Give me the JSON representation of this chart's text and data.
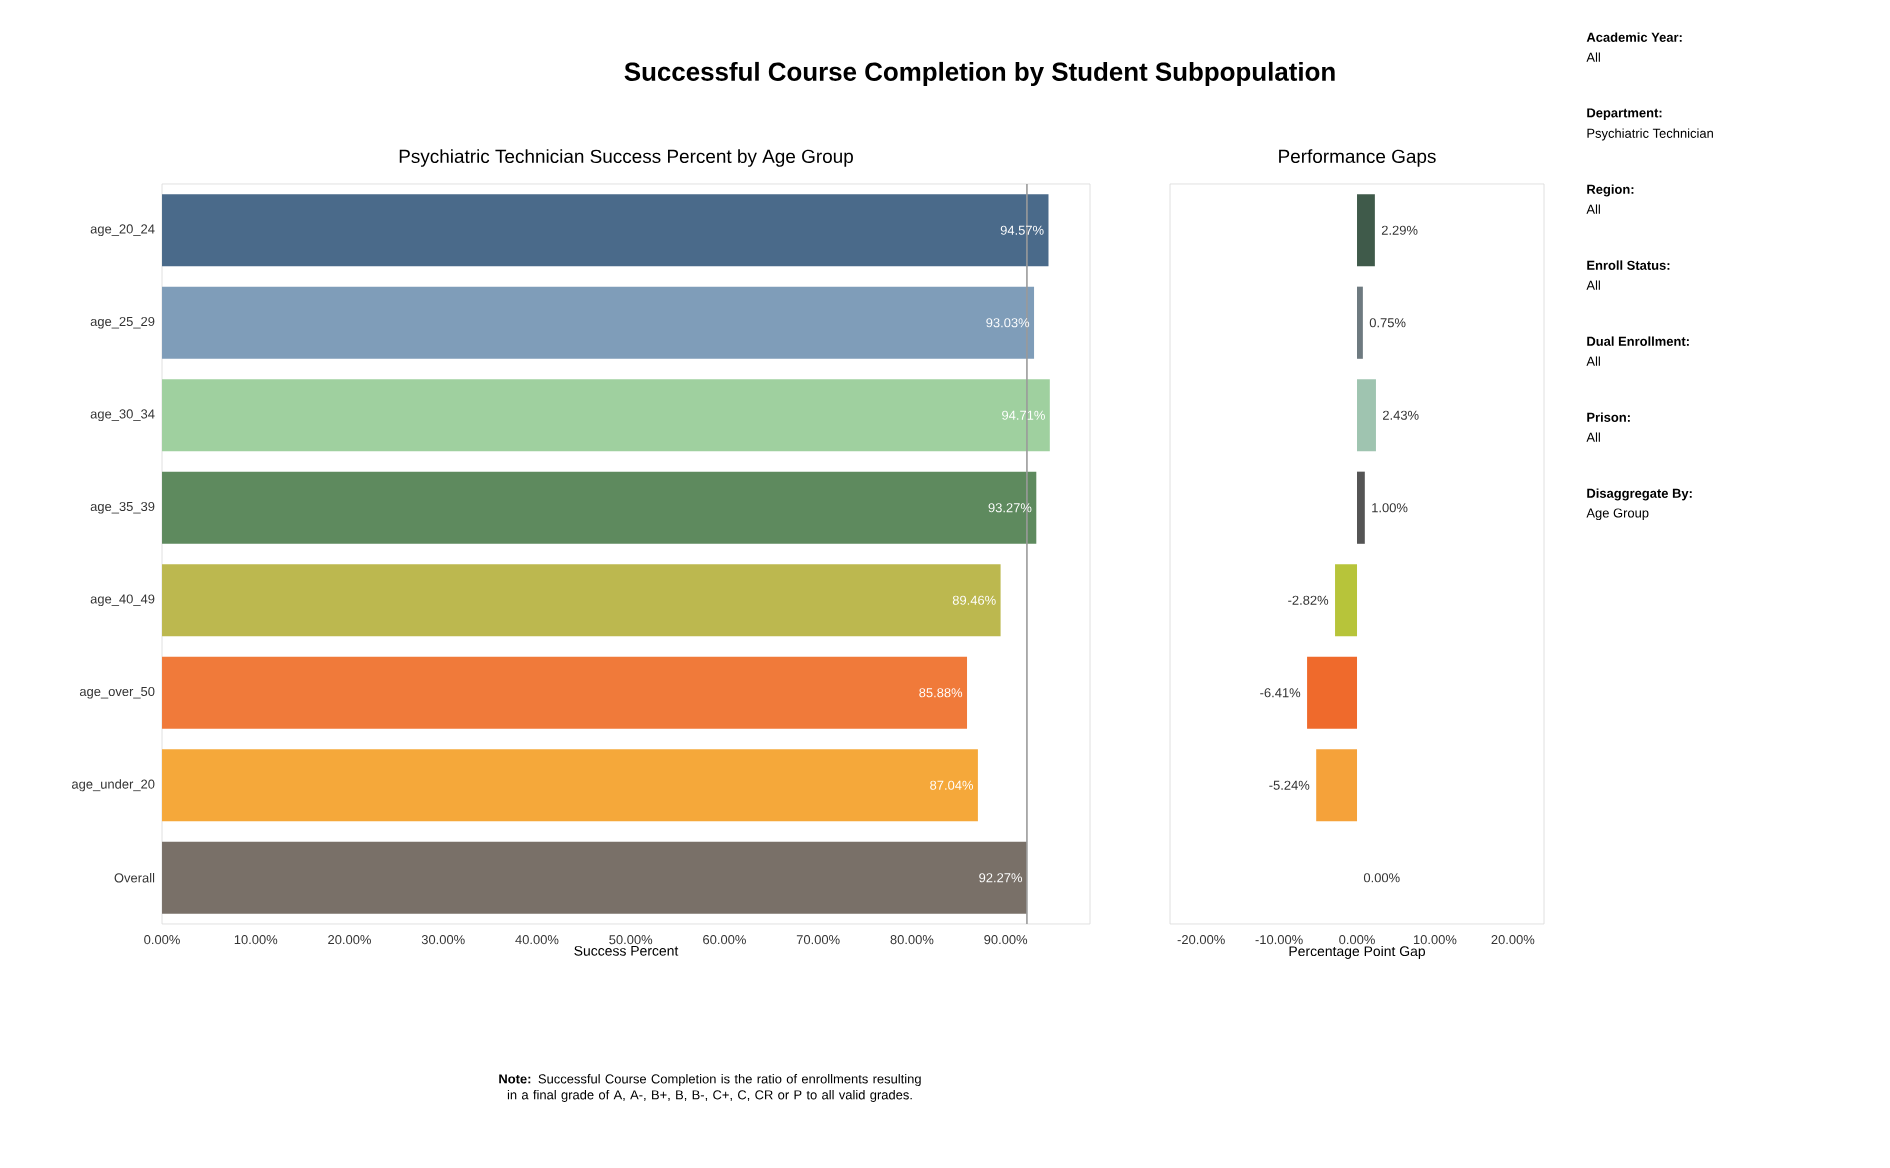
{
  "chart_data": [
    {
      "type": "bar",
      "orientation": "horizontal",
      "title": "Successful Course Completion by Student Subpopulation",
      "subtitle": "Psychiatric Technician Success Percent by Age Group",
      "xlabel": "Success Percent",
      "categories": [
        "age_20_24",
        "age_25_29",
        "age_30_34",
        "age_35_39",
        "age_40_49",
        "age_over_50",
        "age_under_20",
        "Overall"
      ],
      "values": [
        94.57,
        93.03,
        94.71,
        93.27,
        89.46,
        85.88,
        87.04,
        92.27
      ],
      "value_labels": [
        "94.57%",
        "93.03%",
        "94.71%",
        "93.27%",
        "89.46%",
        "85.88%",
        "87.04%",
        "92.27%"
      ],
      "colors": [
        "#4a6a8a",
        "#7f9db9",
        "#9fd09f",
        "#5e8a5e",
        "#bcb84f",
        "#f07a3a",
        "#f5a83a",
        "#797068"
      ],
      "xlim": [
        0,
        99
      ],
      "xticks": [
        {
          "value": 0,
          "label": "0.00%"
        },
        {
          "value": 10,
          "label": "10.00%"
        },
        {
          "value": 20,
          "label": "20.00%"
        },
        {
          "value": 30,
          "label": "30.00%"
        },
        {
          "value": 40,
          "label": "40.00%"
        },
        {
          "value": 50,
          "label": "50.00%"
        },
        {
          "value": 60,
          "label": "60.00%"
        },
        {
          "value": 70,
          "label": "70.00%"
        },
        {
          "value": 80,
          "label": "80.00%"
        },
        {
          "value": 90,
          "label": "90.00%"
        }
      ],
      "ref_lines": [
        {
          "axis": "x",
          "value": 92.27,
          "color": "#9a9a9a"
        }
      ],
      "annotations": [
        "**Note:** Successful Course Completion is the ratio of enrollments resulting in a final grade of A, A-, B+, B, B-, C+, C, CR or P to all valid grades."
      ]
    },
    {
      "type": "bar",
      "orientation": "horizontal",
      "title": "Performance Gaps",
      "xlabel": "Percentage Point Gap",
      "categories": [
        null,
        null,
        null,
        null,
        null,
        null,
        null,
        null
      ],
      "values": [
        2.29,
        0.75,
        2.43,
        1.0,
        -2.82,
        -6.41,
        -5.24,
        0.0
      ],
      "value_labels": [
        "2.29%",
        "0.75%",
        "2.43%",
        "1.00%",
        "-2.82%",
        "-6.41%",
        "-5.24%",
        "0.00%"
      ],
      "colors": [
        "#3f5a4a",
        "#6e7a80",
        "#9fc4b0",
        "#555555",
        "#b7c43a",
        "#ef6a2c",
        "#f5a23a",
        "#8a8aa0"
      ],
      "xlim": [
        -24,
        24
      ],
      "xticks": [
        {
          "value": -20,
          "label": "-20.00%"
        },
        {
          "value": -10,
          "label": "-10.00%"
        },
        {
          "value": 0,
          "label": "0.00%"
        },
        {
          "value": 10,
          "label": "10.00%"
        },
        {
          "value": 20,
          "label": "20.00%"
        }
      ]
    },
    {
      "type": "other",
      "annotations": [
        "Academic Year:",
        "All",
        "Department:",
        "Psychiatric Technician",
        "Region:",
        "All",
        "Enroll Status:",
        "All",
        "Dual Enrollment:",
        "All",
        "Prison:",
        "All",
        "Disaggregate By:",
        "Age Group"
      ]
    }
  ]
}
